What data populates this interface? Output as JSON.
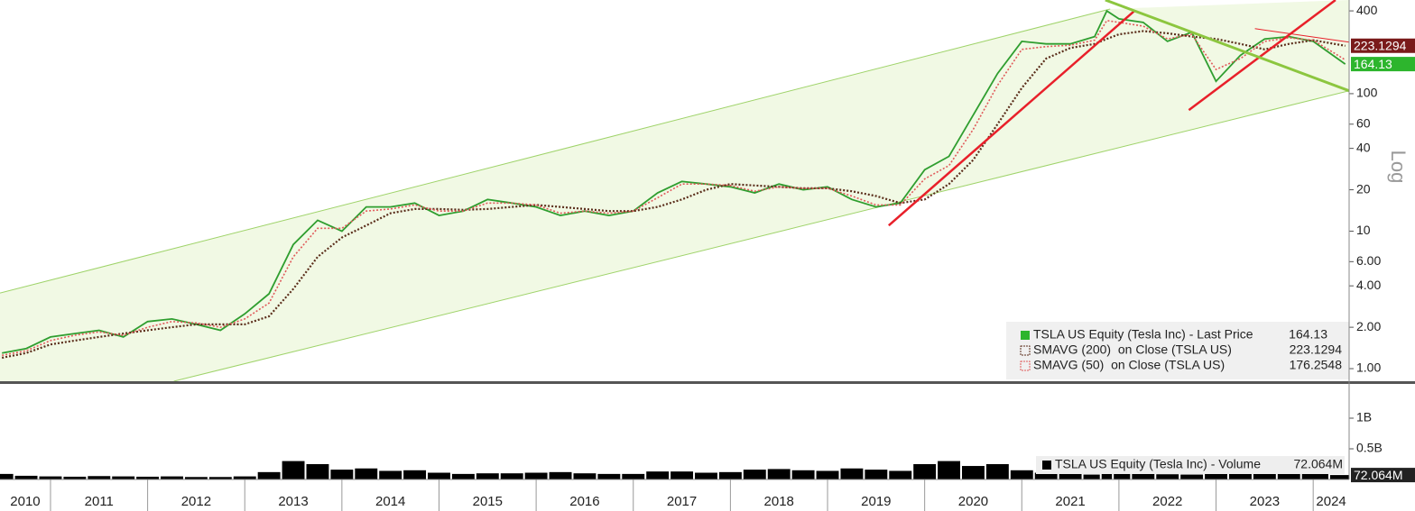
{
  "chart_data": [
    {
      "type": "line",
      "log": true,
      "scale_label": "Log",
      "xlim": [
        2010.48,
        2024.37
      ],
      "ylim": [
        0.81,
        480
      ],
      "yticks": [
        400,
        100,
        60,
        40,
        20,
        10,
        {
          "value": 6,
          "label": "6.00"
        },
        {
          "value": 4,
          "label": "4.00"
        },
        {
          "value": 2,
          "label": "2.00"
        },
        {
          "value": 1,
          "label": "1.00"
        }
      ],
      "x": [
        2010.5,
        2010.75,
        2011,
        2011.25,
        2011.5,
        2011.75,
        2012,
        2012.25,
        2012.5,
        2012.75,
        2013,
        2013.25,
        2013.5,
        2013.75,
        2014,
        2014.25,
        2014.5,
        2014.75,
        2015,
        2015.25,
        2015.5,
        2015.75,
        2016,
        2016.25,
        2016.5,
        2016.75,
        2017,
        2017.25,
        2017.5,
        2017.75,
        2018,
        2018.25,
        2018.5,
        2018.75,
        2019,
        2019.25,
        2019.5,
        2019.75,
        2020,
        2020.25,
        2020.5,
        2020.75,
        2021,
        2021.25,
        2021.5,
        2021.75,
        2021.875,
        2022,
        2022.25,
        2022.5,
        2022.75,
        2023,
        2023.25,
        2023.5,
        2023.75,
        2024,
        2024.33
      ],
      "series": [
        {
          "name": "TSLA US Equity (Tesla Inc) - Last Price",
          "color": "#2f9e2f",
          "values": [
            1.3,
            1.4,
            1.7,
            1.8,
            1.9,
            1.7,
            2.2,
            2.3,
            2.1,
            1.9,
            2.5,
            3.5,
            8,
            12,
            10,
            15,
            15,
            16,
            13,
            14,
            17,
            16,
            15,
            13,
            14,
            13,
            14,
            19,
            23,
            22,
            21,
            19,
            22,
            20,
            21,
            17,
            15,
            16,
            28,
            35,
            70,
            140,
            240,
            230,
            230,
            260,
            400,
            350,
            330,
            240,
            280,
            123,
            190,
            250,
            260,
            240,
            164.13
          ]
        },
        {
          "name": "SMAVG (200)  on Close (TSLA US)",
          "color": "#5a2d1a",
          "values": [
            1.2,
            1.3,
            1.5,
            1.6,
            1.7,
            1.8,
            1.9,
            2.0,
            2.1,
            2.1,
            2.1,
            2.4,
            3.8,
            6.5,
            9,
            11,
            13.5,
            14.5,
            14.5,
            14.3,
            14.5,
            15,
            15.5,
            15,
            14.5,
            14,
            14,
            15,
            17,
            20,
            22,
            21.5,
            21,
            20.5,
            20.5,
            19.5,
            18,
            16,
            17,
            22,
            33,
            60,
            110,
            180,
            215,
            230,
            250,
            270,
            285,
            275,
            260,
            250,
            230,
            210,
            230,
            245,
            223.1294
          ]
        },
        {
          "name": "SMAVG (50)  on Close (TSLA US)",
          "color": "#e05a5a",
          "values": [
            1.25,
            1.35,
            1.6,
            1.75,
            1.85,
            1.75,
            2.0,
            2.2,
            2.15,
            2.0,
            2.3,
            3.0,
            6.5,
            10.5,
            10.5,
            14,
            14.5,
            15.5,
            14,
            14,
            16,
            16,
            15.5,
            13.5,
            14,
            13.5,
            14,
            17.5,
            22,
            22,
            21.5,
            19.5,
            21,
            20.5,
            20.5,
            18,
            15.5,
            15.5,
            24,
            30,
            55,
            115,
            210,
            220,
            225,
            245,
            340,
            330,
            310,
            250,
            270,
            150,
            180,
            240,
            255,
            245,
            176.2548
          ]
        }
      ],
      "tag_colors": [
        "#2db52d",
        "#7a1a1a"
      ],
      "channel_color": "#9fd36a",
      "channel_fill": "#f1f9e4",
      "channel": [
        {
          "x": [
            2010.48,
            2021.91
          ],
          "y": [
            3.55,
            413
          ]
        },
        {
          "x": [
            2012.27,
            2024.37
          ],
          "y": [
            0.81,
            105
          ]
        }
      ],
      "trendlines": [
        {
          "color": "#e8202a",
          "width": 2.5,
          "x": [
            2019.63,
            2022.16
          ],
          "y": [
            11,
            400
          ]
        },
        {
          "color": "#e8202a",
          "width": 2.5,
          "x": [
            2022.72,
            2024.23
          ],
          "y": [
            76,
            480
          ]
        },
        {
          "color": "#8cc63f",
          "width": 3,
          "x": [
            2021.86,
            2024.37
          ],
          "y": [
            480,
            105
          ]
        },
        {
          "color": "#e8202a",
          "width": 1,
          "x": [
            2023.4,
            2024.37
          ],
          "y": [
            297,
            237
          ]
        }
      ]
    },
    {
      "type": "bar",
      "xlim": [
        2010.48,
        2024.37
      ],
      "ylim": [
        0,
        1500000000
      ],
      "yticks": [
        {
          "value": 1000000000,
          "label": "1B"
        },
        {
          "value": 500000000,
          "label": "0.5B"
        }
      ],
      "xticks": [
        2010,
        2011,
        2012,
        2013,
        2014,
        2015,
        2016,
        2017,
        2018,
        2019,
        2020,
        2021,
        2022,
        2023,
        2024
      ],
      "x": [
        2010.5,
        2010.75,
        2011,
        2011.25,
        2011.5,
        2011.75,
        2012,
        2012.25,
        2012.5,
        2012.75,
        2013,
        2013.25,
        2013.5,
        2013.75,
        2014,
        2014.25,
        2014.5,
        2014.75,
        2015,
        2015.25,
        2015.5,
        2015.75,
        2016,
        2016.25,
        2016.5,
        2016.75,
        2017,
        2017.25,
        2017.5,
        2017.75,
        2018,
        2018.25,
        2018.5,
        2018.75,
        2019,
        2019.25,
        2019.5,
        2019.75,
        2020,
        2020.25,
        2020.5,
        2020.75,
        2021,
        2021.25,
        2021.5,
        2021.75,
        2021.875,
        2022,
        2022.25,
        2022.5,
        2022.75,
        2023,
        2023.25,
        2023.5,
        2023.75,
        2024,
        2024.33
      ],
      "series": [
        {
          "name": "TSLA US Equity (Tesla Inc) - Volume",
          "color": "#000000",
          "values": [
            90000000,
            60000000,
            50000000,
            45000000,
            55000000,
            50000000,
            45000000,
            50000000,
            40000000,
            40000000,
            50000000,
            120000000,
            300000000,
            250000000,
            160000000,
            180000000,
            140000000,
            150000000,
            110000000,
            90000000,
            100000000,
            100000000,
            110000000,
            120000000,
            100000000,
            90000000,
            90000000,
            130000000,
            130000000,
            110000000,
            120000000,
            160000000,
            170000000,
            150000000,
            140000000,
            180000000,
            160000000,
            140000000,
            250000000,
            300000000,
            220000000,
            250000000,
            150000000,
            110000000,
            90000000,
            80000000,
            90000000,
            100000000,
            90000000,
            85000000,
            80000000,
            130000000,
            140000000,
            130000000,
            120000000,
            110000000,
            72064000
          ],
          "value_labels": [
            null,
            null,
            null,
            null,
            null,
            null,
            null,
            null,
            null,
            null,
            null,
            null,
            null,
            null,
            null,
            null,
            null,
            null,
            null,
            null,
            null,
            null,
            null,
            null,
            null,
            null,
            null,
            null,
            null,
            null,
            null,
            null,
            null,
            null,
            null,
            null,
            null,
            null,
            null,
            null,
            null,
            null,
            null,
            null,
            null,
            null,
            null,
            null,
            null,
            null,
            null,
            null,
            null,
            null,
            null,
            null,
            "72.064M"
          ]
        }
      ]
    }
  ]
}
